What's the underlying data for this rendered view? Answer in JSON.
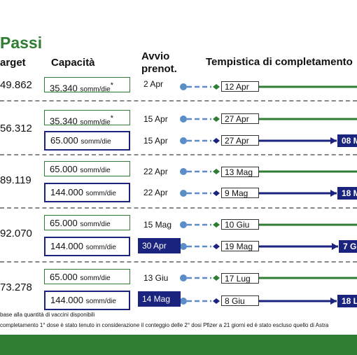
{
  "title": "Passi",
  "headers": {
    "target": "arget",
    "capacity": "Capacità",
    "start_line1": "Avvio",
    "start_line2": "prenot.",
    "timeline": "Tempistica di completamento"
  },
  "targets": [
    "49.862",
    "56.312",
    "89.119",
    "92.070",
    "73.278"
  ],
  "rows": [
    {
      "capacity_num": "35.340",
      "capacity_unit": "somm/die",
      "asterisk": "*",
      "start": "2 Apr",
      "completion": "12 Apr",
      "end_label": ""
    },
    {
      "capacity_num": "35.340",
      "capacity_unit": "somm/die",
      "asterisk": "*",
      "start": "15 Apr",
      "completion": "27 Apr",
      "end_label": ""
    },
    {
      "capacity_num": "65.000",
      "capacity_unit": "somm/die",
      "asterisk": "",
      "start": "15 Apr",
      "completion": "27 Apr",
      "end_label": "08 M"
    },
    {
      "capacity_num": "65.000",
      "capacity_unit": "somm/die",
      "asterisk": "",
      "start": "22 Apr",
      "completion": "13 Mag",
      "end_label": ""
    },
    {
      "capacity_num": "144.000",
      "capacity_unit": "somm/die",
      "asterisk": "",
      "start": "22 Apr",
      "completion": "9 Mag",
      "end_label": "18 M"
    },
    {
      "capacity_num": "65.000",
      "capacity_unit": "somm/die",
      "asterisk": "",
      "start": "15 Mag",
      "completion": "10 Giu",
      "end_label": ""
    },
    {
      "capacity_num": "144.000",
      "capacity_unit": "somm/die",
      "asterisk": "",
      "start": "30 Apr",
      "completion": "19 Mag",
      "end_label": "7 G"
    },
    {
      "capacity_num": "65.000",
      "capacity_unit": "somm/die",
      "asterisk": "",
      "start": "13 Giu",
      "completion": "17 Lug",
      "end_label": ""
    },
    {
      "capacity_num": "144.000",
      "capacity_unit": "somm/die",
      "asterisk": "",
      "start": "14 Mag",
      "completion": "8 Giu",
      "end_label": "18 L"
    }
  ],
  "notes": [
    "base alla quantità di vaccini disponibili",
    "completamento 1° dose è stato tenuto in considerazione il conteggio delle 2° dosi Pfizer a 21 giorni ed è stato escluso quello di Astra"
  ],
  "colors": {
    "green": "#2e7d32",
    "blue": "#1a237e",
    "dot": "#5b8ec9"
  }
}
